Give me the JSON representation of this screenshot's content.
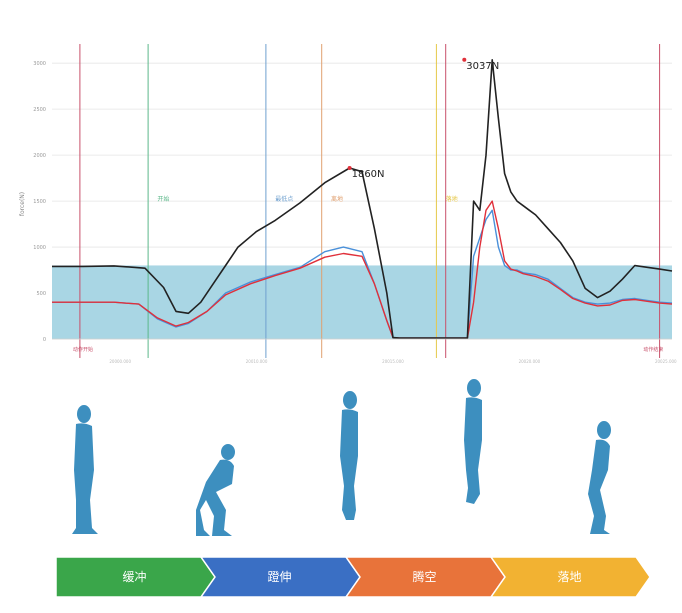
{
  "colors": {
    "band": "#a9d6e4",
    "black_line": "#222222",
    "blue_line": "#4a90d9",
    "red_line": "#e0303a",
    "grid": "#e6e6e6",
    "vline_red": "#c8506a",
    "vline_green": "#5cb88a",
    "vline_blue": "#6fa0cf",
    "vline_orange": "#e0a070",
    "vline_yellow": "#e6c84a",
    "silhouette": "#3d8fbf",
    "phase_green": "#3aa64a",
    "phase_blue": "#3a6fc4",
    "phase_orange": "#e8733a",
    "phase_yellow": "#f2b232"
  },
  "chart_data": {
    "type": "line",
    "ylabel": "force(N)",
    "ylim": [
      0,
      3100
    ],
    "yticks": [
      0,
      500,
      1000,
      1500,
      2000,
      2500,
      3000
    ],
    "ytick_labels": [
      "0",
      "500",
      "1000",
      "1500",
      "2000",
      "2500",
      "3000"
    ],
    "xlim": [
      0,
      100
    ],
    "x_tick_positions": [
      11,
      33,
      55,
      77,
      99
    ],
    "x_tick_labels": [
      "20000.000",
      "20010.000",
      "20015.000",
      "20020.000",
      "20025.000"
    ],
    "band": {
      "y0": 0,
      "y1": 800
    },
    "series": [
      {
        "key": "black",
        "x": [
          0,
          5,
          10,
          15,
          18,
          20,
          22,
          24,
          26,
          28,
          30,
          33,
          36,
          40,
          44,
          48,
          50,
          52,
          54,
          55,
          56,
          58,
          60,
          62,
          64,
          66,
          67,
          68,
          69,
          70,
          71,
          72,
          73,
          74,
          75,
          76,
          77,
          78,
          80,
          82,
          84,
          86,
          88,
          90,
          92,
          94,
          96,
          98,
          100
        ],
        "y": [
          790,
          790,
          795,
          770,
          560,
          300,
          280,
          400,
          600,
          800,
          1000,
          1170,
          1290,
          1480,
          1700,
          1860,
          1820,
          1200,
          500,
          15,
          10,
          10,
          10,
          10,
          10,
          10,
          10,
          1500,
          1400,
          2000,
          3037,
          2400,
          1800,
          1600,
          1500,
          1450,
          1400,
          1350,
          1200,
          1050,
          850,
          550,
          450,
          520,
          650,
          800,
          780,
          760,
          740
        ]
      },
      {
        "key": "blue",
        "x": [
          0,
          5,
          10,
          14,
          17,
          20,
          22,
          25,
          28,
          32,
          36,
          40,
          44,
          47,
          50,
          52,
          54,
          55,
          56,
          58,
          62,
          66,
          67,
          68,
          69,
          70,
          71,
          72,
          73,
          74,
          75,
          76,
          78,
          80,
          82,
          84,
          86,
          88,
          90,
          92,
          94,
          96,
          98,
          100
        ],
        "y": [
          400,
          400,
          400,
          380,
          220,
          130,
          170,
          300,
          500,
          620,
          700,
          780,
          950,
          1000,
          950,
          600,
          200,
          15,
          10,
          10,
          10,
          10,
          10,
          900,
          1100,
          1300,
          1400,
          1000,
          800,
          750,
          750,
          720,
          700,
          650,
          550,
          450,
          400,
          380,
          390,
          430,
          440,
          420,
          400,
          390
        ]
      },
      {
        "key": "red",
        "x": [
          0,
          5,
          10,
          14,
          17,
          20,
          22,
          25,
          28,
          32,
          36,
          40,
          44,
          47,
          50,
          52,
          54,
          55,
          56,
          58,
          62,
          66,
          67,
          68,
          69,
          70,
          71,
          72,
          73,
          74,
          75,
          76,
          78,
          80,
          82,
          84,
          86,
          88,
          90,
          92,
          94,
          96,
          98,
          100
        ],
        "y": [
          400,
          400,
          400,
          380,
          230,
          140,
          180,
          300,
          480,
          600,
          690,
          770,
          890,
          930,
          900,
          600,
          200,
          15,
          10,
          10,
          10,
          10,
          10,
          400,
          1000,
          1400,
          1500,
          1200,
          850,
          760,
          740,
          710,
          680,
          630,
          540,
          440,
          390,
          360,
          370,
          420,
          430,
          410,
          390,
          380
        ]
      }
    ],
    "vlines": [
      {
        "x": 4.5,
        "color_key": "vline_red"
      },
      {
        "x": 15.5,
        "color_key": "vline_green"
      },
      {
        "x": 34.5,
        "color_key": "vline_blue"
      },
      {
        "x": 43.5,
        "color_key": "vline_orange"
      },
      {
        "x": 62,
        "color_key": "vline_yellow"
      },
      {
        "x": 63.5,
        "color_key": "vline_red"
      },
      {
        "x": 98,
        "color_key": "vline_red"
      }
    ],
    "annotations": [
      {
        "text": "3037N",
        "x": 66.5,
        "y": 3037
      },
      {
        "text": "1860N",
        "x": 48,
        "y": 1860
      }
    ],
    "event_labels": [
      {
        "text": "开始",
        "x": 17,
        "y": 1500,
        "color_key": "vline_green"
      },
      {
        "text": "最低点",
        "x": 36,
        "y": 1500,
        "color_key": "vline_blue"
      },
      {
        "text": "离地",
        "x": 45,
        "y": 1500,
        "color_key": "vline_orange"
      },
      {
        "text": "落地",
        "x": 63.5,
        "y": 1500,
        "color_key": "vline_yellow"
      }
    ],
    "corner_labels": [
      {
        "text": "动作开始",
        "x": 5,
        "y": -120
      },
      {
        "text": "动作结束",
        "x": 97,
        "y": -120
      }
    ]
  },
  "phases": [
    {
      "label": "缓冲",
      "color_key": "phase_green"
    },
    {
      "label": "蹬伸",
      "color_key": "phase_blue"
    },
    {
      "label": "腾空",
      "color_key": "phase_orange"
    },
    {
      "label": "落地",
      "color_key": "phase_yellow"
    }
  ]
}
